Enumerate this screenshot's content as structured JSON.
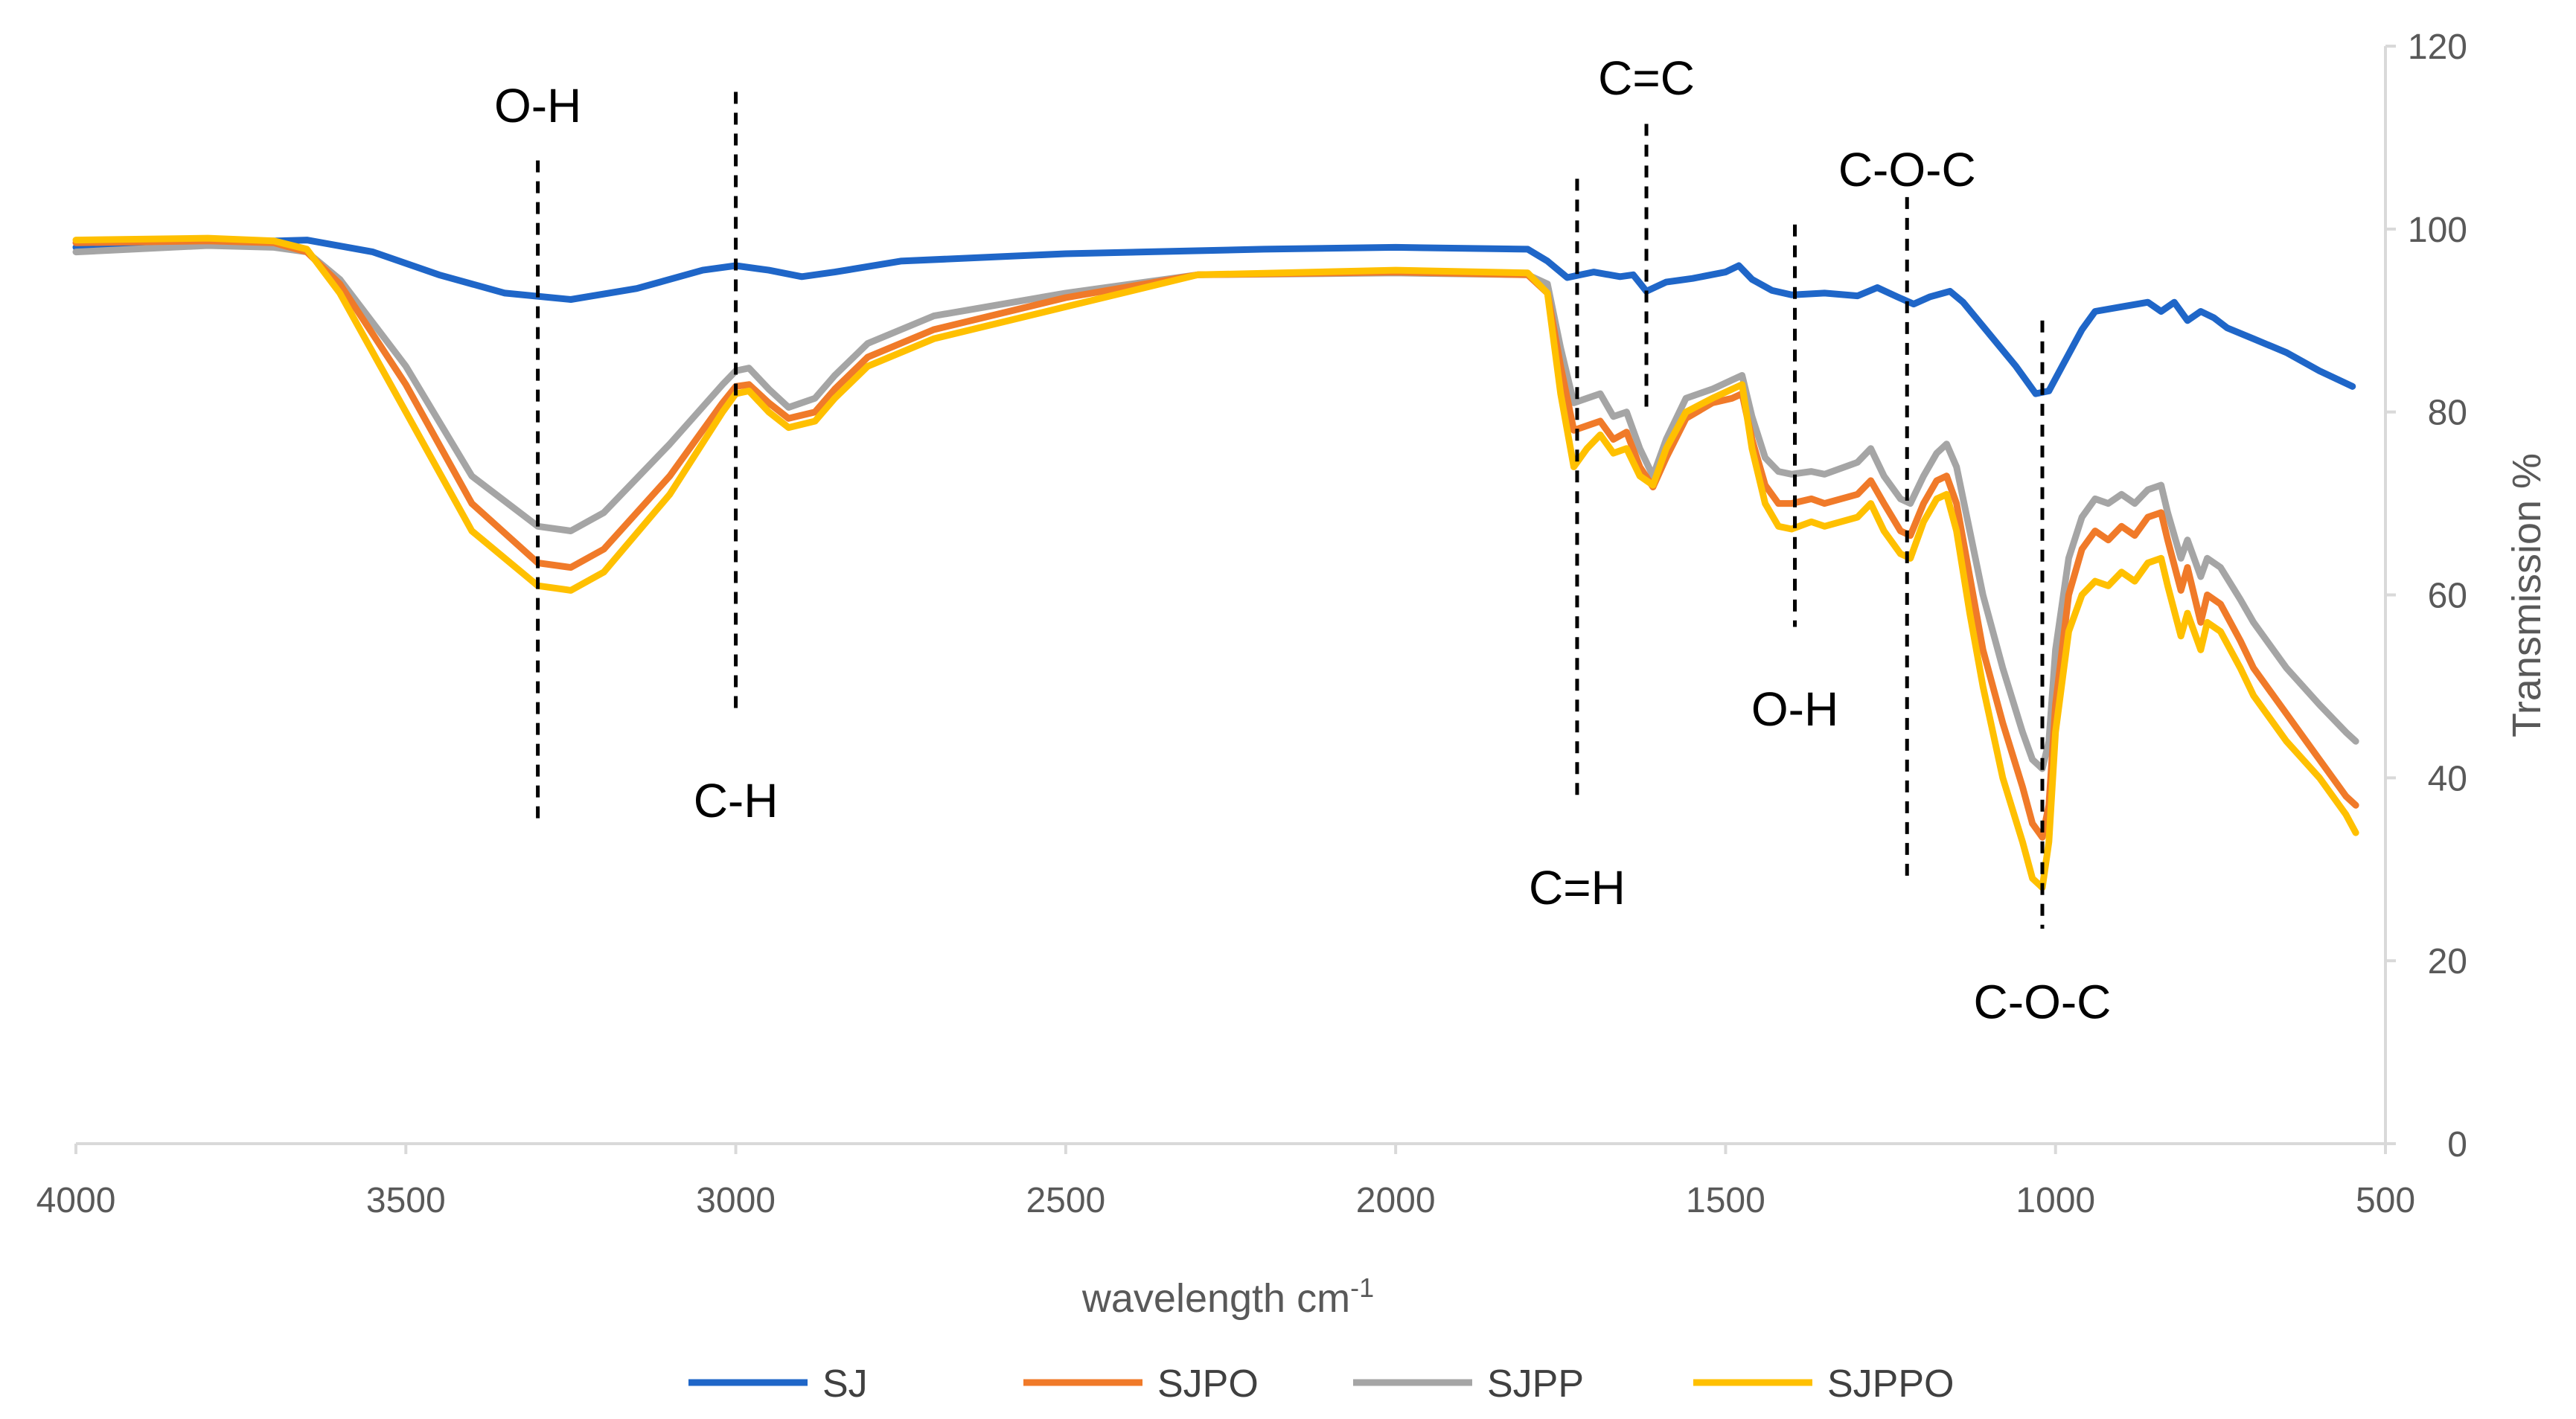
{
  "chart_data": {
    "type": "line",
    "title": "",
    "xlabel": "wavelength cm",
    "xlabel_superscript": "-1",
    "ylabel": "Transmission %",
    "xlim": [
      4000,
      500
    ],
    "x_reversed": true,
    "ylim": [
      0,
      120
    ],
    "x_ticks": [
      "4000",
      "3500",
      "3000",
      "2500",
      "2000",
      "1500",
      "1000",
      "500"
    ],
    "y_ticks": [
      "0",
      "20",
      "40",
      "60",
      "80",
      "100",
      "120"
    ],
    "y_axis_side": "right",
    "grid": false,
    "legend_position": "bottom",
    "series": [
      {
        "name": "SJ",
        "color": "#1F66C8",
        "points": [
          [
            4000,
            98
          ],
          [
            3800,
            98.5
          ],
          [
            3650,
            98.8
          ],
          [
            3550,
            97.5
          ],
          [
            3450,
            95
          ],
          [
            3350,
            93
          ],
          [
            3250,
            92.3
          ],
          [
            3150,
            93.5
          ],
          [
            3050,
            95.5
          ],
          [
            3000,
            96
          ],
          [
            2950,
            95.5
          ],
          [
            2900,
            94.8
          ],
          [
            2850,
            95.3
          ],
          [
            2750,
            96.5
          ],
          [
            2500,
            97.3
          ],
          [
            2200,
            97.8
          ],
          [
            2000,
            98
          ],
          [
            1800,
            97.8
          ],
          [
            1770,
            96.5
          ],
          [
            1740,
            94.7
          ],
          [
            1700,
            95.3
          ],
          [
            1660,
            94.8
          ],
          [
            1640,
            95
          ],
          [
            1620,
            93.2
          ],
          [
            1590,
            94.2
          ],
          [
            1550,
            94.6
          ],
          [
            1500,
            95.3
          ],
          [
            1480,
            96
          ],
          [
            1460,
            94.5
          ],
          [
            1430,
            93.3
          ],
          [
            1400,
            92.8
          ],
          [
            1350,
            93
          ],
          [
            1300,
            92.7
          ],
          [
            1270,
            93.6
          ],
          [
            1240,
            92.6
          ],
          [
            1215,
            91.8
          ],
          [
            1190,
            92.6
          ],
          [
            1160,
            93.2
          ],
          [
            1140,
            92
          ],
          [
            1100,
            88.5
          ],
          [
            1060,
            85
          ],
          [
            1030,
            82
          ],
          [
            1010,
            82.3
          ],
          [
            990,
            85
          ],
          [
            960,
            89
          ],
          [
            940,
            91
          ],
          [
            900,
            91.5
          ],
          [
            860,
            92
          ],
          [
            840,
            91
          ],
          [
            820,
            92
          ],
          [
            800,
            90
          ],
          [
            780,
            91
          ],
          [
            760,
            90.3
          ],
          [
            740,
            89.2
          ],
          [
            700,
            88
          ],
          [
            650,
            86.5
          ],
          [
            600,
            84.5
          ],
          [
            550,
            82.8
          ]
        ]
      },
      {
        "name": "SJPO",
        "color": "#F07A29",
        "points": [
          [
            4000,
            98.5
          ],
          [
            3800,
            98.7
          ],
          [
            3700,
            98.5
          ],
          [
            3650,
            97.5
          ],
          [
            3600,
            94
          ],
          [
            3500,
            83
          ],
          [
            3400,
            70
          ],
          [
            3300,
            63.5
          ],
          [
            3250,
            63
          ],
          [
            3200,
            65
          ],
          [
            3100,
            73
          ],
          [
            3020,
            81
          ],
          [
            3000,
            82.8
          ],
          [
            2980,
            83
          ],
          [
            2950,
            81
          ],
          [
            2920,
            79.3
          ],
          [
            2880,
            80
          ],
          [
            2850,
            82.5
          ],
          [
            2800,
            86
          ],
          [
            2700,
            89
          ],
          [
            2500,
            92.5
          ],
          [
            2300,
            95
          ],
          [
            2000,
            95.3
          ],
          [
            1800,
            95
          ],
          [
            1770,
            93
          ],
          [
            1750,
            85
          ],
          [
            1730,
            78
          ],
          [
            1710,
            78.5
          ],
          [
            1690,
            79
          ],
          [
            1670,
            77
          ],
          [
            1650,
            77.8
          ],
          [
            1630,
            74
          ],
          [
            1610,
            71.8
          ],
          [
            1590,
            75
          ],
          [
            1560,
            79.3
          ],
          [
            1520,
            81
          ],
          [
            1490,
            81.5
          ],
          [
            1475,
            82
          ],
          [
            1460,
            77
          ],
          [
            1440,
            72
          ],
          [
            1420,
            70
          ],
          [
            1400,
            70
          ],
          [
            1370,
            70.5
          ],
          [
            1350,
            70
          ],
          [
            1300,
            71
          ],
          [
            1280,
            72.5
          ],
          [
            1260,
            70
          ],
          [
            1235,
            67
          ],
          [
            1220,
            66.5
          ],
          [
            1200,
            70
          ],
          [
            1180,
            72.5
          ],
          [
            1165,
            73
          ],
          [
            1150,
            70
          ],
          [
            1130,
            62
          ],
          [
            1110,
            54
          ],
          [
            1080,
            46
          ],
          [
            1050,
            39
          ],
          [
            1035,
            35
          ],
          [
            1020,
            33.5
          ],
          [
            1010,
            37
          ],
          [
            1000,
            48
          ],
          [
            980,
            60
          ],
          [
            960,
            65
          ],
          [
            940,
            67
          ],
          [
            920,
            66
          ],
          [
            900,
            67.5
          ],
          [
            880,
            66.5
          ],
          [
            860,
            68.5
          ],
          [
            840,
            69
          ],
          [
            830,
            66
          ],
          [
            810,
            60.5
          ],
          [
            800,
            63
          ],
          [
            780,
            57
          ],
          [
            770,
            60
          ],
          [
            750,
            59
          ],
          [
            720,
            55
          ],
          [
            700,
            52
          ],
          [
            650,
            47
          ],
          [
            600,
            42
          ],
          [
            560,
            38
          ],
          [
            545,
            37
          ]
        ]
      },
      {
        "name": "SJPP",
        "color": "#A5A5A5",
        "points": [
          [
            4000,
            97.5
          ],
          [
            3800,
            98.2
          ],
          [
            3700,
            98
          ],
          [
            3650,
            97.5
          ],
          [
            3600,
            94.5
          ],
          [
            3500,
            85
          ],
          [
            3400,
            73
          ],
          [
            3300,
            67.5
          ],
          [
            3250,
            67
          ],
          [
            3200,
            69
          ],
          [
            3100,
            76.5
          ],
          [
            3020,
            83
          ],
          [
            3000,
            84.5
          ],
          [
            2980,
            84.8
          ],
          [
            2950,
            82.5
          ],
          [
            2920,
            80.5
          ],
          [
            2880,
            81.5
          ],
          [
            2850,
            84
          ],
          [
            2800,
            87.5
          ],
          [
            2700,
            90.5
          ],
          [
            2500,
            93
          ],
          [
            2300,
            95
          ],
          [
            2000,
            95.2
          ],
          [
            1800,
            95
          ],
          [
            1770,
            94
          ],
          [
            1750,
            87
          ],
          [
            1730,
            81
          ],
          [
            1710,
            81.5
          ],
          [
            1690,
            82
          ],
          [
            1670,
            79.5
          ],
          [
            1650,
            80
          ],
          [
            1630,
            76
          ],
          [
            1610,
            73
          ],
          [
            1590,
            77
          ],
          [
            1560,
            81.5
          ],
          [
            1520,
            82.5
          ],
          [
            1490,
            83.5
          ],
          [
            1475,
            84
          ],
          [
            1460,
            79.5
          ],
          [
            1440,
            75
          ],
          [
            1420,
            73.5
          ],
          [
            1400,
            73.2
          ],
          [
            1370,
            73.5
          ],
          [
            1350,
            73.2
          ],
          [
            1300,
            74.5
          ],
          [
            1280,
            76
          ],
          [
            1260,
            73
          ],
          [
            1235,
            70.5
          ],
          [
            1220,
            70
          ],
          [
            1200,
            73
          ],
          [
            1180,
            75.5
          ],
          [
            1165,
            76.5
          ],
          [
            1150,
            74
          ],
          [
            1130,
            67
          ],
          [
            1110,
            60
          ],
          [
            1080,
            52
          ],
          [
            1050,
            45
          ],
          [
            1035,
            42
          ],
          [
            1020,
            41
          ],
          [
            1010,
            44
          ],
          [
            1000,
            54
          ],
          [
            980,
            64
          ],
          [
            960,
            68.5
          ],
          [
            940,
            70.5
          ],
          [
            920,
            70
          ],
          [
            900,
            71
          ],
          [
            880,
            70
          ],
          [
            860,
            71.5
          ],
          [
            840,
            72
          ],
          [
            830,
            69
          ],
          [
            810,
            64
          ],
          [
            800,
            66
          ],
          [
            780,
            62
          ],
          [
            770,
            64
          ],
          [
            750,
            63
          ],
          [
            720,
            59.5
          ],
          [
            700,
            57
          ],
          [
            650,
            52
          ],
          [
            600,
            48
          ],
          [
            560,
            45
          ],
          [
            545,
            44
          ]
        ]
      },
      {
        "name": "SJPPO",
        "color": "#FFC000",
        "points": [
          [
            4000,
            98.8
          ],
          [
            3800,
            99
          ],
          [
            3700,
            98.7
          ],
          [
            3650,
            97.8
          ],
          [
            3600,
            93
          ],
          [
            3500,
            80
          ],
          [
            3400,
            67
          ],
          [
            3300,
            61
          ],
          [
            3250,
            60.5
          ],
          [
            3200,
            62.5
          ],
          [
            3100,
            71
          ],
          [
            3020,
            80
          ],
          [
            3000,
            82
          ],
          [
            2980,
            82.3
          ],
          [
            2950,
            80
          ],
          [
            2920,
            78.3
          ],
          [
            2880,
            79
          ],
          [
            2850,
            81.5
          ],
          [
            2800,
            85
          ],
          [
            2700,
            88
          ],
          [
            2500,
            91.5
          ],
          [
            2300,
            95
          ],
          [
            2000,
            95.5
          ],
          [
            1800,
            95.2
          ],
          [
            1770,
            93
          ],
          [
            1750,
            82
          ],
          [
            1730,
            74
          ],
          [
            1710,
            76
          ],
          [
            1690,
            77.5
          ],
          [
            1670,
            75.5
          ],
          [
            1650,
            76
          ],
          [
            1630,
            73
          ],
          [
            1610,
            72
          ],
          [
            1590,
            76
          ],
          [
            1560,
            80
          ],
          [
            1520,
            81.5
          ],
          [
            1490,
            82.5
          ],
          [
            1475,
            83
          ],
          [
            1460,
            76
          ],
          [
            1440,
            70
          ],
          [
            1420,
            67.5
          ],
          [
            1400,
            67.2
          ],
          [
            1370,
            68
          ],
          [
            1350,
            67.5
          ],
          [
            1300,
            68.5
          ],
          [
            1280,
            70
          ],
          [
            1260,
            67
          ],
          [
            1235,
            64.5
          ],
          [
            1220,
            64
          ],
          [
            1200,
            68
          ],
          [
            1180,
            70.5
          ],
          [
            1165,
            71
          ],
          [
            1150,
            67
          ],
          [
            1130,
            58
          ],
          [
            1110,
            50
          ],
          [
            1080,
            40
          ],
          [
            1050,
            33
          ],
          [
            1035,
            29
          ],
          [
            1020,
            28
          ],
          [
            1010,
            33
          ],
          [
            1000,
            45
          ],
          [
            980,
            56
          ],
          [
            960,
            60
          ],
          [
            940,
            61.5
          ],
          [
            920,
            61
          ],
          [
            900,
            62.5
          ],
          [
            880,
            61.5
          ],
          [
            860,
            63.5
          ],
          [
            840,
            64
          ],
          [
            830,
            61
          ],
          [
            810,
            55.5
          ],
          [
            800,
            58
          ],
          [
            780,
            54
          ],
          [
            770,
            57
          ],
          [
            750,
            56
          ],
          [
            720,
            52
          ],
          [
            700,
            49
          ],
          [
            650,
            44
          ],
          [
            600,
            40
          ],
          [
            560,
            36
          ],
          [
            545,
            34
          ]
        ]
      }
    ],
    "markers": [
      {
        "label": "O-H",
        "x": 3300,
        "y_top": 107.5,
        "y_bottom": 35,
        "label_y": 113.5
      },
      {
        "label": "C-H",
        "x": 3000,
        "y_top": 115,
        "y_bottom": 47,
        "label_y": 37.5
      },
      {
        "label": "C=H",
        "x": 1725,
        "y_top": 105.5,
        "y_bottom": 38,
        "label_y": 28
      },
      {
        "label": "C=C",
        "x": 1620,
        "y_top": 111.5,
        "y_bottom": 80,
        "label_y": 116.5
      },
      {
        "label": "O-H",
        "x": 1395,
        "y_top": 100.5,
        "y_bottom": 56.5,
        "label_y": 47.5
      },
      {
        "label": "C-O-C",
        "x": 1225,
        "y_top": 103.5,
        "y_bottom": 28.5,
        "label_y": 106.5
      },
      {
        "label": "C-O-C",
        "x": 1020,
        "y_top": 90,
        "y_bottom": 23.5,
        "label_y": 15.5
      }
    ]
  }
}
